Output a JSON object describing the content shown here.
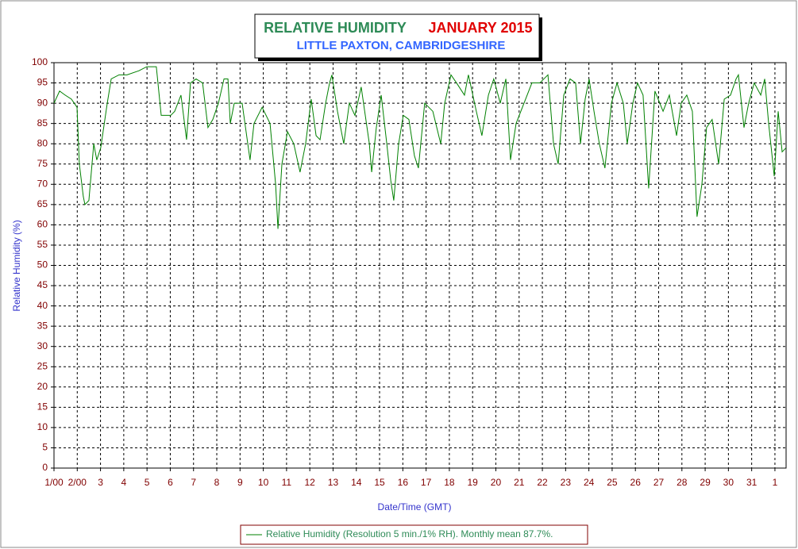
{
  "chart_data": {
    "type": "line",
    "title": "RELATIVE HUMIDITY",
    "title_date": "JANUARY 2015",
    "subtitle": "LITTLE PAXTON, CAMBRIDGESHIRE",
    "x_label": "Date/Time (GMT)",
    "y_label": "Relative Humidity (%)",
    "xlim": [
      0,
      31.48
    ],
    "ylim": [
      0,
      100
    ],
    "grid": true,
    "xticks": [
      {
        "value": 0,
        "label": "1/00"
      },
      {
        "value": 1,
        "label": "2/00"
      },
      {
        "value": 2,
        "label": "3"
      },
      {
        "value": 3,
        "label": "4"
      },
      {
        "value": 4,
        "label": "5"
      },
      {
        "value": 5,
        "label": "6"
      },
      {
        "value": 6,
        "label": "7"
      },
      {
        "value": 7,
        "label": "8"
      },
      {
        "value": 8,
        "label": "9"
      },
      {
        "value": 9,
        "label": "10"
      },
      {
        "value": 10,
        "label": "11"
      },
      {
        "value": 11,
        "label": "12"
      },
      {
        "value": 12,
        "label": "13"
      },
      {
        "value": 13,
        "label": "14"
      },
      {
        "value": 14,
        "label": "15"
      },
      {
        "value": 15,
        "label": "16"
      },
      {
        "value": 16,
        "label": "17"
      },
      {
        "value": 17,
        "label": "18"
      },
      {
        "value": 18,
        "label": "19"
      },
      {
        "value": 19,
        "label": "20"
      },
      {
        "value": 20,
        "label": "21"
      },
      {
        "value": 21,
        "label": "22"
      },
      {
        "value": 22,
        "label": "23"
      },
      {
        "value": 23,
        "label": "24"
      },
      {
        "value": 24,
        "label": "25"
      },
      {
        "value": 25,
        "label": "26"
      },
      {
        "value": 26,
        "label": "27"
      },
      {
        "value": 27,
        "label": "28"
      },
      {
        "value": 28,
        "label": "29"
      },
      {
        "value": 29,
        "label": "30"
      },
      {
        "value": 30,
        "label": "31"
      },
      {
        "value": 31,
        "label": "1"
      }
    ],
    "yticks": [
      0,
      5,
      10,
      15,
      20,
      25,
      30,
      35,
      40,
      45,
      50,
      55,
      60,
      65,
      70,
      75,
      80,
      85,
      90,
      95,
      100
    ],
    "x": [
      0,
      0.24,
      0.48,
      0.75,
      0.99,
      1.09,
      1.26,
      1.33,
      1.5,
      1.71,
      1.84,
      2.01,
      2.29,
      2.46,
      2.8,
      3.14,
      3.65,
      3.99,
      4.4,
      4.61,
      5.02,
      5.19,
      5.46,
      5.7,
      5.87,
      6.11,
      6.39,
      6.62,
      6.83,
      7.07,
      7.31,
      7.48,
      7.58,
      7.75,
      8.09,
      8.43,
      8.6,
      8.95,
      9.29,
      9.53,
      9.63,
      9.8,
      10.04,
      10.31,
      10.58,
      10.82,
      11.06,
      11.27,
      11.44,
      11.68,
      11.85,
      11.95,
      12.19,
      12.46,
      12.7,
      12.94,
      13.21,
      13.56,
      13.66,
      13.86,
      14.07,
      14.31,
      14.48,
      14.61,
      14.82,
      15.02,
      15.26,
      15.5,
      15.67,
      15.94,
      16.29,
      16.63,
      16.8,
      17.07,
      17.31,
      17.65,
      17.82,
      18.16,
      18.4,
      18.68,
      18.91,
      19.19,
      19.43,
      19.63,
      19.87,
      20.21,
      20.55,
      20.89,
      21.24,
      21.48,
      21.68,
      21.92,
      22.19,
      22.43,
      22.64,
      22.84,
      23.01,
      23.22,
      23.45,
      23.69,
      23.97,
      24.21,
      24.48,
      24.65,
      24.89,
      25.09,
      25.33,
      25.57,
      25.84,
      26.19,
      26.46,
      26.77,
      26.97,
      27.21,
      27.45,
      27.65,
      27.86,
      28.06,
      28.3,
      28.58,
      28.82,
      29.09,
      29.33,
      29.43,
      29.67,
      29.87,
      30.11,
      30.39,
      30.56,
      30.73,
      30.97,
      31.14,
      31.31,
      31.48
    ],
    "series": [
      {
        "name": "Relative Humidity (Resolution 5 min./1% RH). Monthly mean 87.7%.",
        "color": "#008000",
        "values": [
          90,
          93,
          92,
          91,
          89,
          75,
          67,
          65,
          66,
          80,
          76,
          79,
          90,
          96,
          97,
          97,
          98,
          99,
          99,
          87,
          87,
          88,
          92,
          81,
          95,
          96,
          95,
          84,
          86,
          90,
          96,
          96,
          85,
          90,
          90,
          76,
          85,
          89,
          85,
          70,
          59,
          75,
          83,
          80,
          73,
          80,
          91,
          82,
          81,
          90,
          95,
          97,
          88,
          80,
          90,
          87,
          94,
          80,
          73,
          84,
          92,
          80,
          71,
          66,
          80,
          87,
          86,
          77,
          74,
          90,
          88,
          80,
          90,
          97,
          95,
          92,
          97,
          88,
          82,
          92,
          96,
          90,
          96,
          76,
          85,
          90,
          95,
          95,
          97,
          80,
          75,
          92,
          96,
          95,
          80,
          91,
          96,
          88,
          80,
          74,
          90,
          95,
          90,
          80,
          90,
          95,
          92,
          69,
          93,
          88,
          92,
          82,
          90,
          92,
          88,
          62,
          70,
          84,
          86,
          75,
          91,
          92,
          96,
          97,
          84,
          90,
          95,
          92,
          96,
          85,
          72,
          88,
          78,
          79
        ]
      }
    ]
  }
}
